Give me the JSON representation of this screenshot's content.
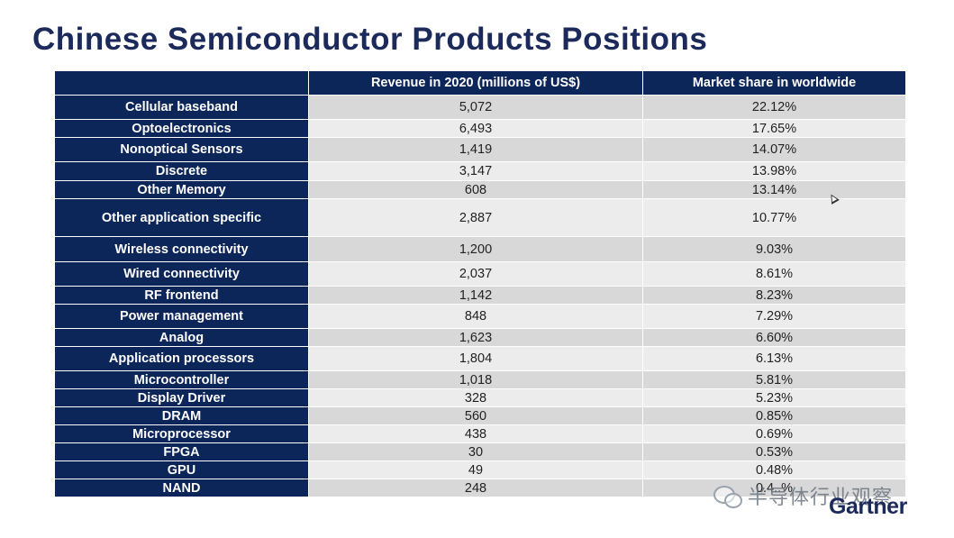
{
  "title": "Chinese Semiconductor Products Positions",
  "table": {
    "headers": {
      "category": "",
      "revenue": "Revenue in 2020 (millions of US$)",
      "share": "Market share in worldwide"
    },
    "rows": [
      {
        "category": "Cellular baseband",
        "revenue": "5,072",
        "share": "22.12%"
      },
      {
        "category": "Optoelectronics",
        "revenue": "6,493",
        "share": "17.65%"
      },
      {
        "category": "Nonoptical Sensors",
        "revenue": "1,419",
        "share": "14.07%"
      },
      {
        "category": "Discrete",
        "revenue": "3,147",
        "share": "13.98%"
      },
      {
        "category": "Other Memory",
        "revenue": "608",
        "share": "13.14%"
      },
      {
        "category": "Other application specific",
        "revenue": "2,887",
        "share": "10.77%"
      },
      {
        "category": "Wireless connectivity",
        "revenue": "1,200",
        "share": "9.03%"
      },
      {
        "category": "Wired connectivity",
        "revenue": "2,037",
        "share": "8.61%"
      },
      {
        "category": "RF frontend",
        "revenue": "1,142",
        "share": "8.23%"
      },
      {
        "category": "Power management",
        "revenue": "848",
        "share": "7.29%"
      },
      {
        "category": "Analog",
        "revenue": "1,623",
        "share": "6.60%"
      },
      {
        "category": "Application processors",
        "revenue": "1,804",
        "share": "6.13%"
      },
      {
        "category": "Microcontroller",
        "revenue": "1,018",
        "share": "5.81%"
      },
      {
        "category": "Display Driver",
        "revenue": "328",
        "share": "5.23%"
      },
      {
        "category": "DRAM",
        "revenue": "560",
        "share": "0.85%"
      },
      {
        "category": "Microprocessor",
        "revenue": "438",
        "share": "0.69%"
      },
      {
        "category": "FPGA",
        "revenue": "30",
        "share": "0.53%"
      },
      {
        "category": "GPU",
        "revenue": "49",
        "share": "0.48%"
      },
      {
        "category": "NAND",
        "revenue": "248",
        "share": "0.4..%"
      }
    ]
  },
  "watermark": {
    "icon": "wechat-icon",
    "text": "半导体行业观察"
  },
  "brand": {
    "logo_text": "Gartner",
    "color": "#1b2a5a"
  },
  "colors": {
    "header_bg": "#0d2659",
    "row_odd": "#d8d8d8",
    "row_even": "#ececec"
  }
}
